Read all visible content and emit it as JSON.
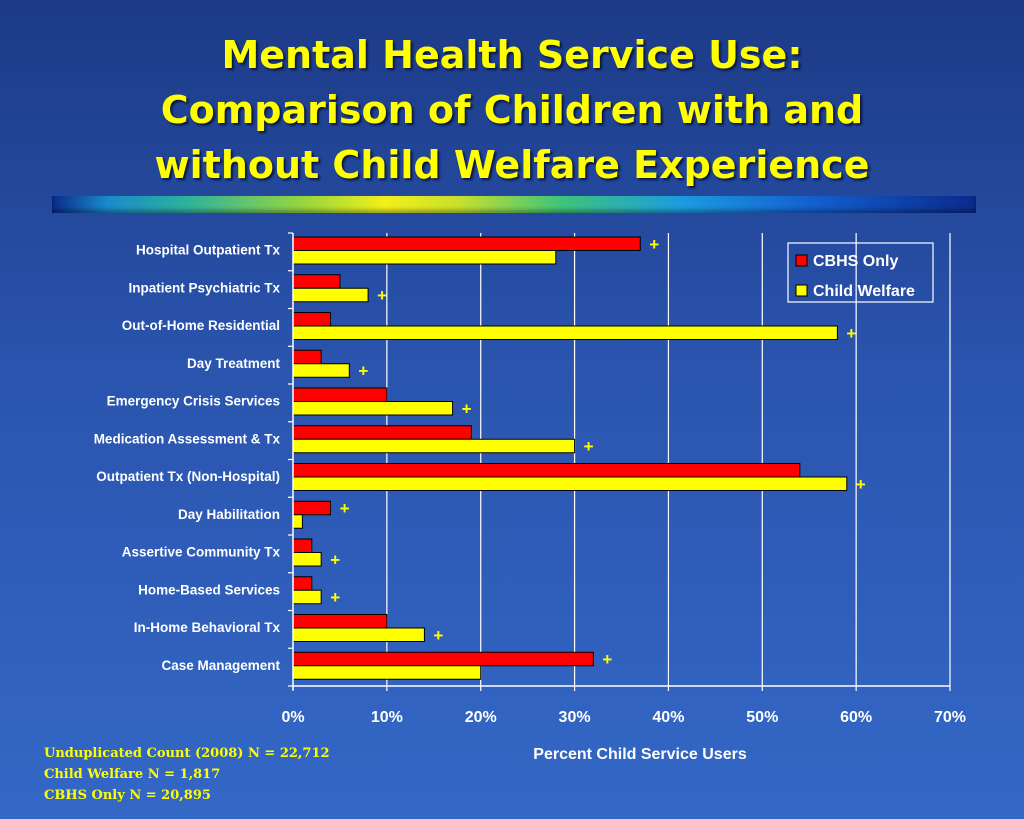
{
  "title_lines": [
    "Mental Health Service Use:",
    "Comparison of Children with and",
    "without Child Welfare Experience"
  ],
  "footnotes": [
    "Unduplicated Count (2008)  N = 22,712",
    "Child Welfare N = 1,817",
    "CBHS Only N = 20,895"
  ],
  "colors": {
    "cbhs": "#ff0000",
    "welfare": "#ffff00",
    "title": "#ffff00",
    "significance": "#ffff00"
  },
  "chart_data": {
    "type": "bar",
    "orientation": "horizontal",
    "title": "Mental Health Service Use: Comparison of Children with and without Child Welfare Experience",
    "xlabel": "Percent Child Service Users",
    "ylabel": "",
    "xlim": [
      0,
      70
    ],
    "x_ticks": [
      0,
      10,
      20,
      30,
      40,
      50,
      60,
      70
    ],
    "x_tick_labels": [
      "0%",
      "10%",
      "20%",
      "30%",
      "40%",
      "50%",
      "60%",
      "70%"
    ],
    "grid": "vertical",
    "legend_position": "top-right",
    "categories": [
      "Hospital Outpatient Tx",
      "Inpatient Psychiatric Tx",
      "Out-of-Home Residential",
      "Day Treatment",
      "Emergency Crisis Services",
      "Medication Assessment & Tx",
      "Outpatient Tx (Non-Hospital)",
      "Day Habilitation",
      "Assertive Community Tx",
      "Home-Based Services",
      "In-Home Behavioral Tx",
      "Case Management"
    ],
    "series": [
      {
        "name": "CBHS Only",
        "color": "#ff0000",
        "values": [
          37,
          5,
          4,
          3,
          10,
          19,
          54,
          4,
          2,
          2,
          10,
          32
        ]
      },
      {
        "name": "Child Welfare",
        "color": "#ffff00",
        "values": [
          28,
          8,
          58,
          6,
          17,
          30,
          59,
          1,
          3,
          3,
          14,
          20
        ]
      }
    ],
    "significance_marker": "+",
    "significance_marker_on_series": [
      0,
      1,
      1,
      1,
      1,
      1,
      1,
      0,
      1,
      1,
      1,
      0
    ]
  }
}
